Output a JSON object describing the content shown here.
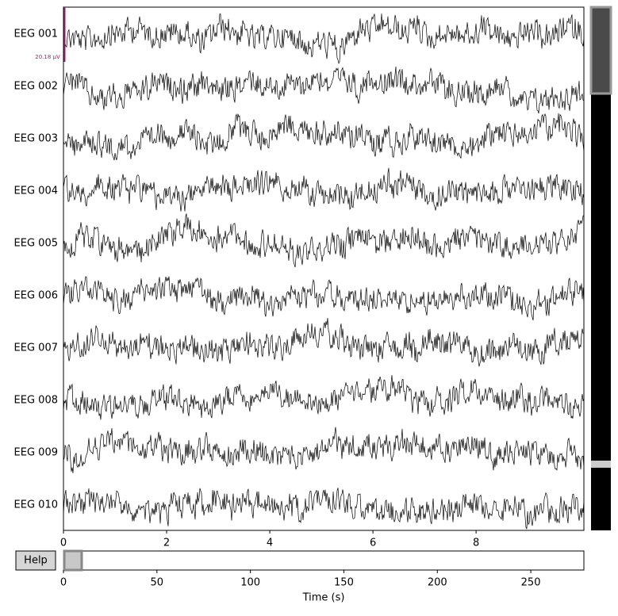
{
  "channels": [
    "EEG 001",
    "EEG 002",
    "EEG 003",
    "EEG 004",
    "EEG 005",
    "EEG 006",
    "EEG 007",
    "EEG 008",
    "EEG 009",
    "EEG 010"
  ],
  "scale_label": "20.18 µV",
  "time_axis": {
    "xlim": [
      0,
      10.09
    ],
    "ticks": [
      0,
      2,
      4,
      6,
      8
    ]
  },
  "overview_axis": {
    "xlim": [
      0,
      278.4
    ],
    "ticks": [
      0,
      50,
      100,
      150,
      200,
      250
    ],
    "label": "Time (s)"
  },
  "help_button": "Help"
}
